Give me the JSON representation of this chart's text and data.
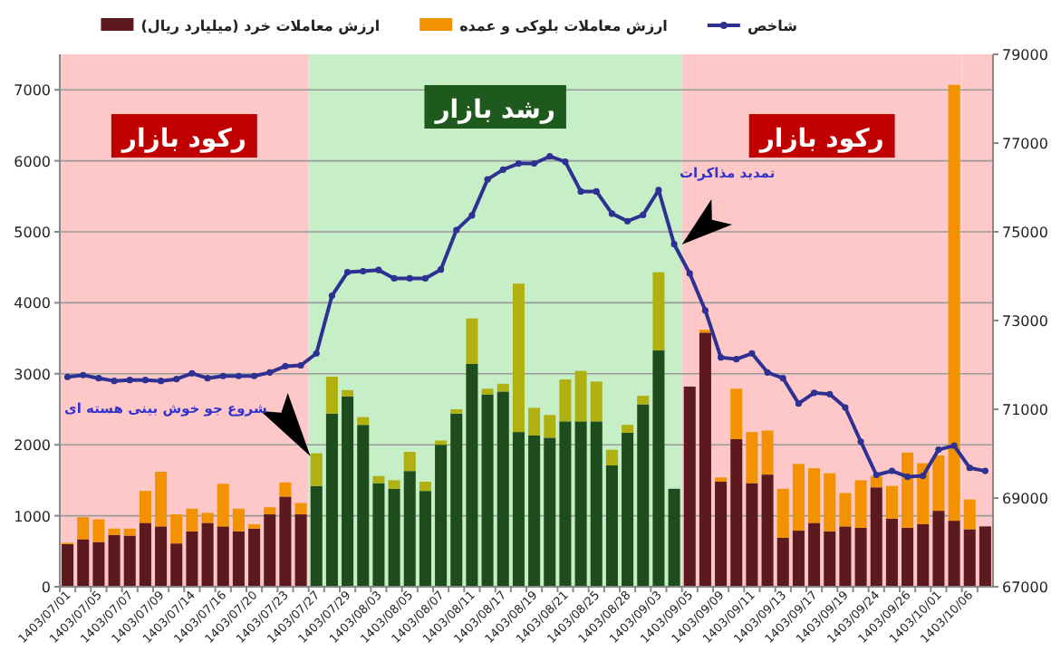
{
  "chart_data": {
    "type": "bar",
    "stacked": true,
    "categories": [
      "1403/07/01",
      null,
      "1403/07/05",
      null,
      "1403/07/07",
      null,
      "1403/07/09",
      null,
      "1403/07/14",
      null,
      "1403/07/16",
      null,
      "1403/07/20",
      null,
      "1403/07/23",
      null,
      "1403/07/27",
      null,
      "1403/07/29",
      null,
      "1403/08/03",
      null,
      "1403/08/05",
      null,
      "1403/08/07",
      null,
      "1403/08/11",
      null,
      "1403/08/17",
      null,
      "1403/08/19",
      null,
      "1403/08/21",
      null,
      "1403/08/25",
      null,
      "1403/08/28",
      null,
      "1403/09/03",
      null,
      "1403/09/05",
      null,
      "1403/09/09",
      null,
      "1403/09/11",
      null,
      "1403/09/13",
      null,
      "1403/09/17",
      null,
      "1403/09/19",
      null,
      "1403/09/24",
      null,
      "1403/09/26",
      null,
      "1403/10/01",
      null,
      "1403/10/06",
      null
    ],
    "series": [
      {
        "name": "ارزش معاملات خرد (میلیارد ریال)",
        "colors": [
          "#5c1a1e",
          "#5c1a1e",
          "#5c1a1e",
          "#5c1a1e",
          "#5c1a1e",
          "#5c1a1e",
          "#5c1a1e",
          "#5c1a1e",
          "#5c1a1e",
          "#5c1a1e",
          "#5c1a1e",
          "#5c1a1e",
          "#5c1a1e",
          "#5c1a1e",
          "#5c1a1e",
          "#5c1a1e",
          "#1d4d1d",
          "#1d4d1d",
          "#1d4d1d",
          "#1d4d1d",
          "#1d4d1d",
          "#1d4d1d",
          "#1d4d1d",
          "#1d4d1d",
          "#1d4d1d",
          "#1d4d1d",
          "#1d4d1d",
          "#1d4d1d",
          "#1d4d1d",
          "#1d4d1d",
          "#1d4d1d",
          "#1d4d1d",
          "#1d4d1d",
          "#1d4d1d",
          "#1d4d1d",
          "#1d4d1d",
          "#1d4d1d",
          "#1d4d1d",
          "#1d4d1d",
          "#1d4d1d",
          "#5c1a1e",
          "#5c1a1e",
          "#5c1a1e",
          "#5c1a1e",
          "#5c1a1e",
          "#5c1a1e",
          "#5c1a1e",
          "#5c1a1e",
          "#5c1a1e",
          "#5c1a1e",
          "#5c1a1e",
          "#5c1a1e",
          "#5c1a1e",
          "#5c1a1e",
          "#5c1a1e",
          "#5c1a1e",
          "#5c1a1e",
          "#5c1a1e",
          "#5c1a1e",
          "#5c1a1e"
        ],
        "values": [
          600,
          670,
          630,
          730,
          720,
          900,
          850,
          610,
          780,
          900,
          850,
          780,
          820,
          1020,
          1270,
          1020,
          1420,
          2440,
          2680,
          2280,
          1460,
          1380,
          1630,
          1350,
          2000,
          2440,
          3140,
          2710,
          2750,
          2180,
          2130,
          2100,
          2330,
          2330,
          2330,
          1710,
          2170,
          2570,
          3330,
          1380,
          2820,
          3580,
          1480,
          2080,
          1460,
          1580,
          690,
          790,
          900,
          780,
          850,
          830,
          1400,
          960,
          830,
          880,
          1070,
          930,
          810,
          850
        ]
      },
      {
        "name": "ارزش معاملات بلوکی و عمده",
        "colors": [
          "#f39200",
          "#f39200",
          "#f39200",
          "#f39200",
          "#f39200",
          "#f39200",
          "#f39200",
          "#f39200",
          "#f39200",
          "#f39200",
          "#f39200",
          "#f39200",
          "#f39200",
          "#f39200",
          "#f39200",
          "#f39200",
          "#b0b010",
          "#b0b010",
          "#b0b010",
          "#b0b010",
          "#b0b010",
          "#b0b010",
          "#b0b010",
          "#b0b010",
          "#b0b010",
          "#b0b010",
          "#b0b010",
          "#b0b010",
          "#b0b010",
          "#b0b010",
          "#b0b010",
          "#b0b010",
          "#b0b010",
          "#b0b010",
          "#b0b010",
          "#b0b010",
          "#b0b010",
          "#b0b010",
          "#b0b010",
          "#b0b010",
          "#f39200",
          "#f39200",
          "#f39200",
          "#f39200",
          "#f39200",
          "#f39200",
          "#f39200",
          "#f39200",
          "#f39200",
          "#f39200",
          "#f39200",
          "#f39200",
          "#f39200",
          "#f39200",
          "#f39200",
          "#f39200",
          "#f39200",
          "#f39200",
          "#f39200",
          "#f39200"
        ],
        "values": [
          20,
          310,
          320,
          90,
          100,
          450,
          770,
          410,
          320,
          140,
          600,
          320,
          60,
          100,
          200,
          160,
          460,
          520,
          90,
          110,
          100,
          120,
          270,
          130,
          60,
          60,
          640,
          80,
          110,
          2090,
          390,
          320,
          590,
          710,
          560,
          220,
          110,
          120,
          1100,
          0,
          0,
          40,
          60,
          710,
          720,
          620,
          690,
          940,
          770,
          820,
          470,
          670,
          160,
          460,
          1060,
          860,
          780,
          6140,
          420,
          0
        ]
      },
      {
        "name": "شاخص",
        "type": "line",
        "axis": "y2",
        "color": "#2e3192",
        "marker": "circle",
        "values": [
          71730,
          71770,
          71700,
          71640,
          71660,
          71660,
          71640,
          71680,
          71810,
          71700,
          71750,
          71750,
          71750,
          71830,
          71970,
          71990,
          72260,
          73560,
          74090,
          74110,
          74140,
          73950,
          73950,
          73950,
          74150,
          75040,
          75370,
          76180,
          76400,
          76540,
          76540,
          76700,
          76580,
          75910,
          75910,
          75410,
          75240,
          75380,
          75940,
          74720,
          74060,
          73230,
          72170,
          72130,
          72260,
          71830,
          71700,
          71130,
          71370,
          71340,
          71040,
          70270,
          69520,
          69610,
          69480,
          69500,
          70090,
          70180,
          69680,
          69610
        ]
      }
    ],
    "ylim": [
      0,
      7500
    ],
    "yticks": [
      0,
      1000,
      2000,
      3000,
      4000,
      5000,
      6000,
      7000
    ],
    "y2lim": [
      67000,
      79000
    ],
    "y2ticks": [
      67000,
      69000,
      71000,
      73000,
      75000,
      77000,
      79000
    ],
    "grid": "y",
    "legend": "top",
    "bands": [
      {
        "axis": "x",
        "from": "1403/07/01",
        "to": "1403/07/27",
        "label": "رکود بازار",
        "color": "#ffc8c8"
      },
      {
        "axis": "x",
        "from": "1403/07/27",
        "to": "1403/09/05",
        "label": "رشد بازار",
        "color": "#c6efc8"
      },
      {
        "axis": "x",
        "from": "1403/09/05",
        "to": "1403/10/06",
        "label": "رکود بازار",
        "color": "#ffc8c8"
      }
    ],
    "annotations": [
      "شروع جو خوش بینی هسته ای",
      "تمدید مذاکرات"
    ]
  }
}
